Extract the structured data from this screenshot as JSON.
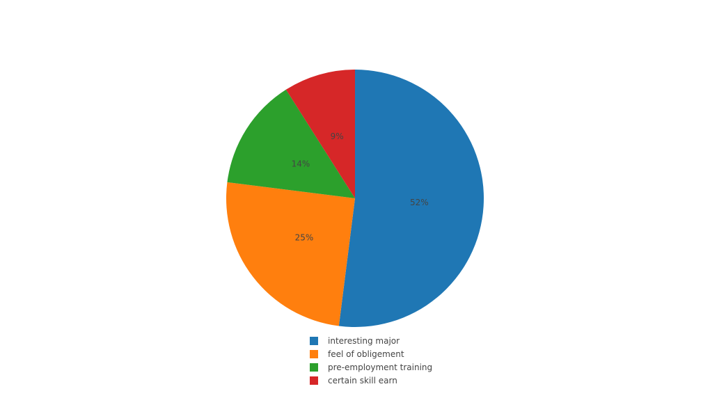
{
  "chart_data": {
    "type": "pie",
    "categories": [
      "interesting major",
      "feel of obligement",
      "pre-employment training",
      "certain skill earn"
    ],
    "values": [
      52,
      25,
      14,
      9
    ],
    "labels": [
      "52%",
      "25%",
      "14%",
      "9%"
    ],
    "colors": [
      "#1f77b4",
      "#ff7f0e",
      "#2ca02c",
      "#d62728"
    ],
    "title": "",
    "legend_position": "bottom-center"
  },
  "legend": {
    "items": [
      {
        "label": "interesting major",
        "color": "#1f77b4"
      },
      {
        "label": "feel of obligement",
        "color": "#ff7f0e"
      },
      {
        "label": "pre-employment training",
        "color": "#2ca02c"
      },
      {
        "label": "certain skill earn",
        "color": "#d62728"
      }
    ]
  }
}
